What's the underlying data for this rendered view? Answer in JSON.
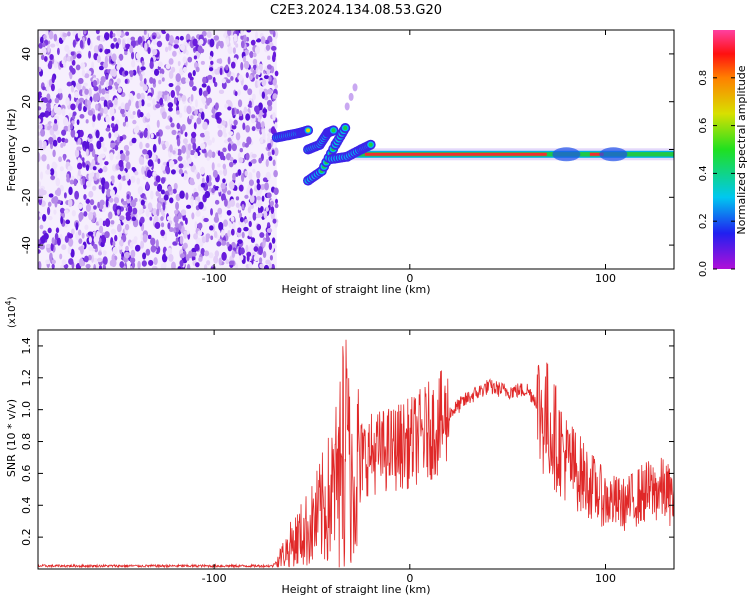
{
  "title": "C2E3.2024.134.08.53.G20",
  "chart_data": [
    {
      "type": "heatmap",
      "xlabel": "Height of straight line (km)",
      "ylabel": "Frequency (Hz)",
      "xlim": [
        -190,
        135
      ],
      "ylim": [
        -50,
        50
      ],
      "x_ticks": [
        -100,
        0,
        100
      ],
      "x_tick_labels": [
        "-100",
        "0",
        "100"
      ],
      "y_ticks": [
        -40,
        -20,
        0,
        20,
        40
      ],
      "y_tick_labels": [
        "-40",
        "-20",
        "0",
        "20",
        "40"
      ],
      "colorbar": {
        "label": "Normalized spectral amplitude",
        "range": [
          0,
          1
        ],
        "ticks": [
          0,
          0.2,
          0.4,
          0.6,
          0.8
        ],
        "tick_labels": [
          "0.0",
          "0.2",
          "0.4",
          "0.6",
          "0.8"
        ],
        "colormap": "rainbow (magenta-blue-cyan-green-yellow-red-pink)"
      },
      "noise_region": {
        "x": [
          -190,
          -68
        ],
        "y": [
          -50,
          50
        ],
        "color": "#6a1bdc"
      },
      "tones": [
        {
          "name": "rising tone A",
          "points": [
            [
              -68,
              5
            ],
            [
              -62,
              6
            ],
            [
              -56,
              7
            ],
            [
              -52,
              8
            ]
          ],
          "peak": 0.6
        },
        {
          "name": "rising tone B",
          "points": [
            [
              -52,
              0
            ],
            [
              -46,
              2
            ],
            [
              -42,
              7
            ],
            [
              -39,
              8
            ]
          ],
          "peak": 0.4
        },
        {
          "name": "rising tone C",
          "points": [
            [
              -52,
              -13
            ],
            [
              -45,
              -9
            ],
            [
              -38,
              2
            ],
            [
              -33,
              9
            ]
          ],
          "peak": 0.35
        },
        {
          "name": "low tone",
          "points": [
            [
              -40,
              -4
            ],
            [
              -32,
              -3
            ],
            [
              -25,
              0
            ],
            [
              -20,
              2
            ]
          ],
          "peak": 0.5
        }
      ],
      "carrier": {
        "y": -2,
        "x_start": -30,
        "x_end": 135,
        "peak_segments": [
          [
            -23,
            70
          ],
          [
            92,
            99
          ]
        ]
      },
      "weak_blobs": [
        [
          -30,
          22
        ],
        [
          -32,
          18
        ],
        [
          -28,
          26
        ]
      ]
    },
    {
      "type": "line",
      "xlabel": "Height of straight line (km)",
      "ylabel": "SNR (10 * v/v)",
      "y_multiplier": "(x10^4)",
      "xlim": [
        -190,
        135
      ],
      "ylim": [
        0,
        1.5
      ],
      "x_ticks": [
        -100,
        0,
        100
      ],
      "x_tick_labels": [
        "-100",
        "0",
        "100"
      ],
      "y_ticks": [
        0.2,
        0.4,
        0.6,
        0.8,
        1.0,
        1.2,
        1.4
      ],
      "y_tick_labels": [
        "0.2",
        "0.4",
        "0.6",
        "0.8",
        "1.0",
        "1.2",
        "1.4"
      ],
      "series_color": "#e02828",
      "envelope": {
        "x": [
          -190,
          -70,
          -68,
          -60,
          -50,
          -40,
          -35,
          -33,
          -30,
          -25,
          -20,
          -10,
          0,
          10,
          20,
          30,
          40,
          50,
          60,
          70,
          80,
          90,
          100,
          110,
          120,
          130,
          135
        ],
        "y": [
          0.02,
          0.02,
          0.05,
          0.18,
          0.3,
          0.5,
          0.7,
          0.82,
          0.65,
          0.72,
          0.75,
          0.78,
          0.82,
          0.9,
          0.98,
          1.08,
          1.15,
          1.12,
          1.13,
          0.98,
          0.72,
          0.58,
          0.45,
          0.42,
          0.5,
          0.52,
          0.45
        ]
      }
    }
  ]
}
